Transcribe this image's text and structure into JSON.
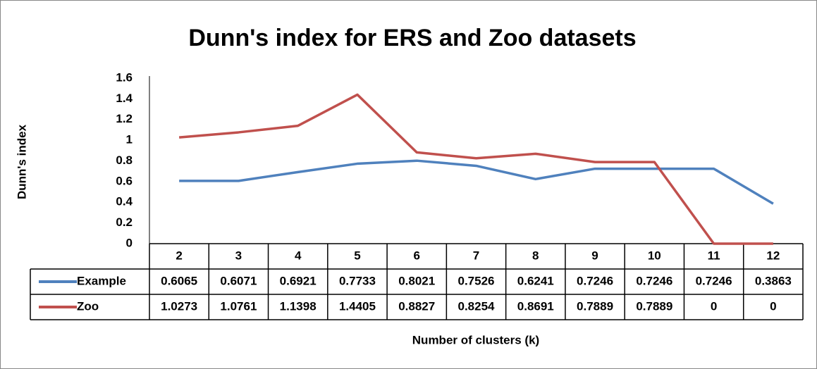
{
  "chart_data": {
    "type": "line",
    "title": "Dunn's index for ERS and Zoo datasets",
    "y_label": "Dunn's index",
    "x_label": "Number of clusters (k)",
    "categories": [
      "2",
      "3",
      "4",
      "5",
      "6",
      "7",
      "8",
      "9",
      "10",
      "11",
      "12"
    ],
    "series": [
      {
        "name": "Example",
        "color": "#4f81bd",
        "values": [
          0.6065,
          0.6071,
          0.6921,
          0.7733,
          0.8021,
          0.7526,
          0.6241,
          0.7246,
          0.7246,
          0.7246,
          0.3863
        ]
      },
      {
        "name": "Zoo",
        "color": "#c0504d",
        "values": [
          1.0273,
          1.0761,
          1.1398,
          1.4405,
          0.8827,
          0.8254,
          0.8691,
          0.7889,
          0.7889,
          0,
          0
        ]
      }
    ],
    "ylim": [
      0,
      1.6
    ],
    "yticks": [
      0,
      0.2,
      0.4,
      0.6,
      0.8,
      1,
      1.2,
      1.4,
      1.6
    ],
    "grid": false,
    "data_table": true
  }
}
